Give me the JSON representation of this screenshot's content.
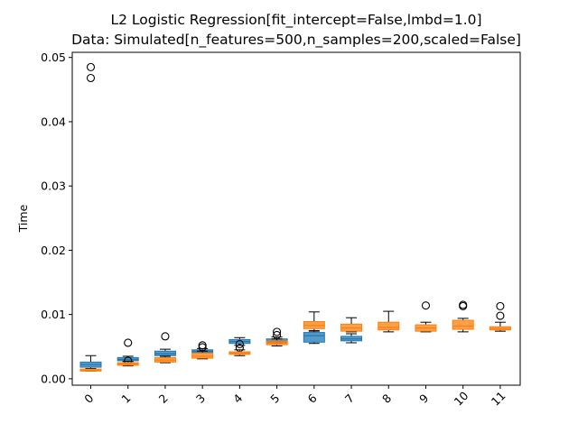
{
  "chart_data": {
    "type": "box",
    "title_line1": "L2 Logistic Regression[fit_intercept=False,lmbd=1.0]",
    "title_line2": "Data: Simulated[n_features=500,n_samples=200,scaled=False]",
    "xlabel": "",
    "ylabel": "Time",
    "ylim": [
      -0.001,
      0.0508
    ],
    "yticks": [
      0.0,
      0.01,
      0.02,
      0.03,
      0.04,
      0.05
    ],
    "ytick_labels": [
      "0.00",
      "0.01",
      "0.02",
      "0.03",
      "0.04",
      "0.05"
    ],
    "categories": [
      "0",
      "1",
      "2",
      "3",
      "4",
      "5",
      "6",
      "7",
      "8",
      "9",
      "10",
      "11"
    ],
    "colors": {
      "series_a": "#1f77b4",
      "series_b": "#ff7f0e"
    },
    "series": [
      {
        "boxes": [
          {
            "whislo": 0.0016,
            "q1": 0.0018,
            "med": 0.0022,
            "q3": 0.0026,
            "whishi": 0.0036,
            "fliers": [
              0.0468,
              0.0485
            ]
          },
          {
            "whislo": 0.0027,
            "q1": 0.0028,
            "med": 0.003,
            "q3": 0.0033,
            "whishi": 0.0035,
            "fliers": [
              0.0028
            ]
          },
          {
            "whislo": 0.0033,
            "q1": 0.0036,
            "med": 0.0039,
            "q3": 0.0043,
            "whishi": 0.0046,
            "fliers": []
          },
          {
            "whislo": 0.004,
            "q1": 0.0041,
            "med": 0.0043,
            "q3": 0.0045,
            "whishi": 0.0047,
            "fliers": [
              0.0052
            ]
          },
          {
            "whislo": 0.0052,
            "q1": 0.0055,
            "med": 0.0058,
            "q3": 0.0061,
            "whishi": 0.0064,
            "fliers": [
              0.0048,
              0.0054
            ]
          },
          {
            "whislo": 0.0055,
            "q1": 0.0057,
            "med": 0.0059,
            "q3": 0.0062,
            "whishi": 0.0065,
            "fliers": [
              0.0068
            ]
          },
          {
            "whislo": 0.0055,
            "q1": 0.0057,
            "med": 0.0067,
            "q3": 0.0072,
            "whishi": 0.0074,
            "fliers": []
          },
          {
            "whislo": 0.0056,
            "q1": 0.0059,
            "med": 0.0062,
            "q3": 0.0066,
            "whishi": 0.007,
            "fliers": []
          }
        ]
      },
      {
        "boxes": [
          {
            "whislo": 0.0012,
            "q1": 0.0012,
            "med": 0.0013,
            "q3": 0.0015,
            "whishi": 0.0016,
            "fliers": []
          },
          {
            "whislo": 0.002,
            "q1": 0.0021,
            "med": 0.0023,
            "q3": 0.0025,
            "whishi": 0.0027,
            "fliers": [
              0.0056
            ]
          },
          {
            "whislo": 0.0025,
            "q1": 0.0026,
            "med": 0.0029,
            "q3": 0.0033,
            "whishi": 0.0035,
            "fliers": [
              0.0066
            ]
          },
          {
            "whislo": 0.0031,
            "q1": 0.0032,
            "med": 0.0035,
            "q3": 0.004,
            "whishi": 0.0043,
            "fliers": [
              0.0049
            ]
          },
          {
            "whislo": 0.0036,
            "q1": 0.0038,
            "med": 0.004,
            "q3": 0.0042,
            "whishi": 0.0045,
            "fliers": []
          },
          {
            "whislo": 0.0051,
            "q1": 0.0053,
            "med": 0.0055,
            "q3": 0.0059,
            "whishi": 0.0062,
            "fliers": [
              0.0073
            ]
          },
          {
            "whislo": 0.0075,
            "q1": 0.0078,
            "med": 0.0083,
            "q3": 0.0089,
            "whishi": 0.0104,
            "fliers": []
          },
          {
            "whislo": 0.0073,
            "q1": 0.0074,
            "med": 0.0079,
            "q3": 0.0085,
            "whishi": 0.0095,
            "fliers": []
          },
          {
            "whislo": 0.0073,
            "q1": 0.0076,
            "med": 0.008,
            "q3": 0.0088,
            "whishi": 0.0105,
            "fliers": []
          },
          {
            "whislo": 0.0073,
            "q1": 0.0074,
            "med": 0.0079,
            "q3": 0.0084,
            "whishi": 0.0088,
            "fliers": [
              0.0114
            ]
          },
          {
            "whislo": 0.0073,
            "q1": 0.0077,
            "med": 0.0082,
            "q3": 0.0091,
            "whishi": 0.0094,
            "fliers": [
              0.0113,
              0.0115
            ]
          },
          {
            "whislo": 0.0074,
            "q1": 0.0076,
            "med": 0.0078,
            "q3": 0.0081,
            "whishi": 0.0088,
            "fliers": [
              0.0098,
              0.0113
            ]
          }
        ]
      }
    ]
  }
}
